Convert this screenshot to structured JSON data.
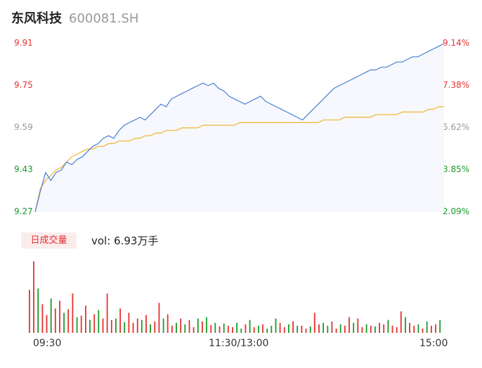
{
  "header": {
    "name": "东风科技",
    "code": "600081.SH"
  },
  "price_axis": [
    "9.91",
    "9.75",
    "9.59",
    "9.43",
    "9.27"
  ],
  "pct_axis": [
    "9.14%",
    "7.38%",
    "5.62%",
    "3.85%",
    "2.09%"
  ],
  "volume": {
    "period_label": "日成交量",
    "text": "vol: 6.93万手"
  },
  "time_axis": [
    "09:30",
    "11:30/13:00",
    "15:00"
  ],
  "colors": {
    "up": "#e5312f",
    "down": "#1a9b2a",
    "price_line": "#4a7fd6",
    "avg_line": "#f0b429",
    "area": "#f6f8fd"
  },
  "chart_data": [
    {
      "type": "line",
      "title": "",
      "ylim": [
        9.27,
        9.91
      ],
      "ylim_pct": [
        2.09,
        9.14
      ],
      "x_ticks": [
        "09:30",
        "11:30/13:00",
        "15:00"
      ],
      "series": [
        {
          "role": "price",
          "values": [
            9.27,
            9.35,
            9.42,
            9.39,
            9.42,
            9.43,
            9.46,
            9.45,
            9.47,
            9.48,
            9.5,
            9.52,
            9.53,
            9.55,
            9.56,
            9.55,
            9.58,
            9.6,
            9.61,
            9.62,
            9.63,
            9.62,
            9.64,
            9.66,
            9.68,
            9.67,
            9.7,
            9.71,
            9.72,
            9.73,
            9.74,
            9.75,
            9.76,
            9.75,
            9.76,
            9.74,
            9.73,
            9.71,
            9.7,
            9.69,
            9.68,
            9.69,
            9.7,
            9.71,
            9.69,
            9.68,
            9.67,
            9.66,
            9.65,
            9.64,
            9.63,
            9.62,
            9.64,
            9.66,
            9.68,
            9.7,
            9.72,
            9.74,
            9.75,
            9.76,
            9.77,
            9.78,
            9.79,
            9.8,
            9.81,
            9.81,
            9.82,
            9.82,
            9.83,
            9.84,
            9.84,
            9.85,
            9.86,
            9.86,
            9.87,
            9.88,
            9.89,
            9.9,
            9.91
          ]
        },
        {
          "role": "average",
          "values": [
            9.27,
            9.36,
            9.39,
            9.41,
            9.43,
            9.44,
            9.46,
            9.48,
            9.49,
            9.5,
            9.51,
            9.51,
            9.52,
            9.52,
            9.53,
            9.53,
            9.54,
            9.54,
            9.54,
            9.55,
            9.55,
            9.56,
            9.56,
            9.57,
            9.57,
            9.58,
            9.58,
            9.58,
            9.59,
            9.59,
            9.59,
            9.59,
            9.6,
            9.6,
            9.6,
            9.6,
            9.6,
            9.6,
            9.6,
            9.61,
            9.61,
            9.61,
            9.61,
            9.61,
            9.61,
            9.61,
            9.61,
            9.61,
            9.61,
            9.61,
            9.61,
            9.61,
            9.61,
            9.61,
            9.61,
            9.62,
            9.62,
            9.62,
            9.62,
            9.63,
            9.63,
            9.63,
            9.63,
            9.63,
            9.63,
            9.64,
            9.64,
            9.64,
            9.64,
            9.64,
            9.65,
            9.65,
            9.65,
            9.65,
            9.65,
            9.66,
            9.66,
            9.67,
            9.67
          ]
        }
      ]
    },
    {
      "type": "bar",
      "title": "日成交量",
      "values": [
        60,
        100,
        62,
        40,
        25,
        48,
        34,
        45,
        28,
        33,
        55,
        22,
        24,
        38,
        18,
        26,
        32,
        20,
        55,
        18,
        20,
        34,
        15,
        28,
        14,
        20,
        18,
        25,
        12,
        16,
        42,
        20,
        26,
        10,
        14,
        20,
        12,
        18,
        8,
        20,
        16,
        22,
        11,
        14,
        9,
        13,
        10,
        8,
        14,
        6,
        12,
        18,
        8,
        10,
        12,
        6,
        10,
        20,
        14,
        8,
        12,
        16,
        10,
        10,
        6,
        9,
        28,
        12,
        14,
        10,
        16,
        6,
        12,
        10,
        22,
        14,
        20,
        8,
        12,
        10,
        9,
        14,
        12,
        18,
        10,
        8,
        30,
        22,
        14,
        10,
        12,
        6,
        16,
        10,
        12,
        18
      ],
      "up_flags": [
        1,
        1,
        0,
        1,
        1,
        0,
        1,
        1,
        0,
        1,
        1,
        0,
        1,
        1,
        0,
        1,
        0,
        1,
        1,
        1,
        0,
        1,
        0,
        1,
        1,
        1,
        0,
        1,
        0,
        1,
        1,
        0,
        1,
        1,
        0,
        1,
        0,
        1,
        1,
        0,
        1,
        0,
        1,
        0,
        1,
        0,
        1,
        1,
        0,
        0,
        1,
        0,
        1,
        0,
        1,
        0,
        0,
        0,
        1,
        1,
        0,
        1,
        0,
        1,
        1,
        0,
        1,
        1,
        0,
        0,
        1,
        1,
        0,
        1,
        1,
        0,
        1,
        1,
        0,
        1,
        0,
        1,
        1,
        0,
        1,
        1,
        1,
        0,
        1,
        1,
        0,
        1,
        0,
        1,
        1,
        0
      ]
    }
  ]
}
